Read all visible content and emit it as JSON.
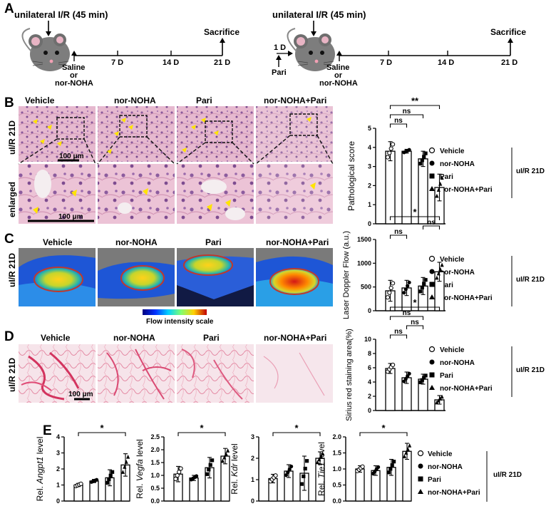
{
  "panelA": {
    "label": "A",
    "left": {
      "injury": "unilateral I/R (45 min)",
      "end": "Sacrifice",
      "ticks": [
        "7 D",
        "14 D",
        "21 D"
      ],
      "treat1": "Saline",
      "treat2": "or",
      "treat3": "nor-NOHA"
    },
    "right": {
      "injury": "unilateral I/R (45 min)",
      "end": "Sacrifice",
      "ticks": [
        "7 D",
        "14 D",
        "21 D"
      ],
      "pre": "1 D",
      "pari": "Pari",
      "treat1": "Saline",
      "treat2": "or",
      "treat3": "nor-NOHA"
    }
  },
  "panelB": {
    "label": "B",
    "groups": [
      "Vehicle",
      "nor-NOHA",
      "Pari",
      "nor-NOHA+Pari"
    ],
    "row1": "uI/R 21D",
    "row2": "enlarged",
    "scale1": "100 μm",
    "scale2": "100 μm"
  },
  "panelC": {
    "label": "C",
    "groups": [
      "Vehicle",
      "nor-NOHA",
      "Pari",
      "nor-NOHA+Pari"
    ],
    "row": "uI/R 21D",
    "scale_label": "Flow intensity scale"
  },
  "panelD": {
    "label": "D",
    "groups": [
      "Vehicle",
      "nor-NOHA",
      "Pari",
      "nor-NOHA+Pari"
    ],
    "row": "uI/R 21D",
    "scale": "100 μm"
  },
  "panelE": {
    "label": "E"
  },
  "legend": {
    "items": [
      "Vehicle",
      "nor-NOHA",
      "Pari",
      "nor-NOHA+Pari"
    ],
    "group": "uI/R 21D"
  },
  "colors": {
    "purple": "#6a3d9a",
    "red": "#e31a1c"
  },
  "chart_data": [
    {
      "id": "pathology",
      "type": "bar",
      "categories": [
        "Vehicle",
        "nor-NOHA",
        "Pari",
        "nor-NOHA+Pari"
      ],
      "values": [
        3.8,
        3.8,
        3.4,
        1.9
      ],
      "errors": [
        0.5,
        0.1,
        0.4,
        0.7
      ],
      "ylabel": "Pathological score",
      "ylim": [
        0,
        5
      ],
      "yticks": [
        "0",
        "1",
        "2",
        "3",
        "4",
        "5"
      ],
      "sig": [
        {
          "from": 0,
          "to": 1,
          "label": "ns"
        },
        {
          "from": 0,
          "to": 2,
          "label": "ns"
        },
        {
          "from": 0,
          "to": 3,
          "label": "**"
        }
      ]
    },
    {
      "id": "doppler",
      "type": "bar",
      "categories": [
        "Vehicle",
        "nor-NOHA",
        "Pari",
        "nor-NOHA+Pari"
      ],
      "values": [
        420,
        480,
        520,
        820
      ],
      "errors": [
        220,
        160,
        180,
        200
      ],
      "ylabel": "Laser Doppler Flow (a.u.)",
      "ylim": [
        0,
        1500
      ],
      "yticks": [
        "0",
        "500",
        "1000",
        "1500"
      ],
      "sig": [
        {
          "from": 0,
          "to": 1,
          "label": "ns"
        },
        {
          "from": 2,
          "to": 3,
          "label": "ns"
        },
        {
          "from": 0,
          "to": 3,
          "label": "*"
        }
      ]
    },
    {
      "id": "sirius",
      "type": "bar",
      "categories": [
        "Vehicle",
        "nor-NOHA",
        "Pari",
        "nor-NOHA+Pari"
      ],
      "values": [
        5.9,
        4.6,
        4.4,
        1.5
      ],
      "errors": [
        0.7,
        0.8,
        0.7,
        0.6
      ],
      "ylabel": "Sirius red staining area(%)",
      "ylim": [
        0,
        10
      ],
      "yticks": [
        "0",
        "2",
        "4",
        "6",
        "8",
        "10"
      ],
      "sig": [
        {
          "from": 0,
          "to": 1,
          "label": "ns"
        },
        {
          "from": 1,
          "to": 2,
          "label": "ns"
        },
        {
          "from": 0,
          "to": 2,
          "label": "ns"
        },
        {
          "from": 0,
          "to": 3,
          "label": "*"
        }
      ]
    },
    {
      "id": "angpt1",
      "type": "bar",
      "categories": [
        "Vehicle",
        "nor-NOHA",
        "Pari",
        "nor-NOHA+Pari"
      ],
      "values": [
        1.0,
        1.25,
        1.45,
        2.25
      ],
      "errors": [
        0.1,
        0.1,
        0.5,
        0.7
      ],
      "ylabel": "Rel. Angpt1 level",
      "gene": "Angpt1",
      "ylim": [
        0,
        4
      ],
      "yticks": [
        "0",
        "1",
        "2",
        "3",
        "4"
      ],
      "sig": [
        {
          "from": 0,
          "to": 3,
          "label": "*"
        }
      ]
    },
    {
      "id": "vegfa",
      "type": "bar",
      "categories": [
        "Vehicle",
        "nor-NOHA",
        "Pari",
        "nor-NOHA+Pari"
      ],
      "values": [
        1.05,
        0.9,
        1.3,
        1.75
      ],
      "errors": [
        0.3,
        0.1,
        0.4,
        0.3
      ],
      "ylabel": "Rel. Vegfa level",
      "gene": "Vegfa",
      "ylim": [
        0,
        2.5
      ],
      "yticks": [
        "0.0",
        "0.5",
        "1.0",
        "1.5",
        "2.0",
        "2.5"
      ],
      "sig": [
        {
          "from": 0,
          "to": 3,
          "label": "*"
        }
      ]
    },
    {
      "id": "kdr",
      "type": "bar",
      "categories": [
        "Vehicle",
        "nor-NOHA",
        "Pari",
        "nor-NOHA+Pari"
      ],
      "values": [
        1.05,
        1.4,
        1.3,
        2.0
      ],
      "errors": [
        0.2,
        0.3,
        0.8,
        0.3
      ],
      "ylabel": "Rel. Kdr level",
      "gene": "Kdr",
      "ylim": [
        0,
        3
      ],
      "yticks": [
        "0",
        "1",
        "2",
        "3"
      ],
      "sig": [
        {
          "from": 0,
          "to": 3,
          "label": "*"
        }
      ]
    },
    {
      "id": "tie1",
      "type": "bar",
      "categories": [
        "Vehicle",
        "nor-NOHA",
        "Pari",
        "nor-NOHA+Pari"
      ],
      "values": [
        1.0,
        0.95,
        1.05,
        1.55
      ],
      "errors": [
        0.1,
        0.15,
        0.25,
        0.25
      ],
      "ylabel": "Rel. Tie1 level",
      "gene": "Tie1",
      "ylim": [
        0,
        2
      ],
      "yticks": [
        "0.0",
        "0.5",
        "1.0",
        "1.5",
        "2.0"
      ],
      "sig": [
        {
          "from": 0,
          "to": 3,
          "label": "*"
        }
      ]
    }
  ]
}
